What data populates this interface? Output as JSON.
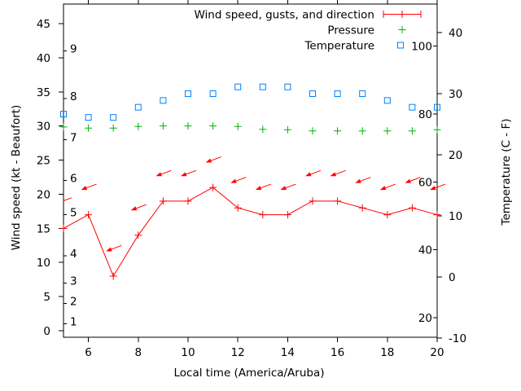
{
  "chart_data": {
    "type": "line",
    "x_axis": {
      "label": "Local time (America/Aruba)",
      "min": 5,
      "max": 20,
      "ticks": [
        6,
        8,
        10,
        12,
        14,
        16,
        18,
        20
      ]
    },
    "wind_axis": {
      "label": "Wind speed (kt - Beaufort)",
      "ticks": [
        0,
        5,
        10,
        15,
        20,
        25,
        30,
        35,
        40,
        45
      ],
      "range_min": -0.96,
      "range_max": 47.87,
      "beaufort_labels": [
        {
          "text": "1",
          "kt": 1
        },
        {
          "text": "2",
          "kt": 4
        },
        {
          "text": "3",
          "kt": 7
        },
        {
          "text": "4",
          "kt": 11
        },
        {
          "text": "5",
          "kt": 17
        },
        {
          "text": "6",
          "kt": 22
        },
        {
          "text": "7",
          "kt": 28
        },
        {
          "text": "8",
          "kt": 34
        },
        {
          "text": "9",
          "kt": 41
        }
      ]
    },
    "temp_axis": {
      "label": "Temperature (C - F)",
      "ticks_c": [
        -10,
        0,
        10,
        20,
        30,
        40
      ],
      "range_min": -9.87,
      "range_max": 44.67,
      "fahrenheit_labels": [
        20,
        40,
        60,
        80,
        100
      ]
    },
    "hours": [
      5,
      6,
      7,
      8,
      9,
      10,
      11,
      12,
      13,
      14,
      15,
      16,
      17,
      18,
      19,
      20
    ],
    "series": [
      {
        "name": "Wind speed, gusts, and direction",
        "style": "line-with-plus-markers-and-direction-arrows",
        "color": "#ff0000",
        "wind_kt": [
          15,
          17,
          8,
          14,
          19,
          19,
          21,
          18,
          17,
          17,
          19,
          19,
          18,
          17,
          18,
          17
        ],
        "gust_kt": [
          19,
          21,
          12,
          18,
          23,
          23,
          25,
          22,
          21,
          21,
          23,
          23,
          22,
          21,
          22,
          21
        ]
      },
      {
        "name": "Pressure",
        "style": "plus-markers",
        "color": "#00b400",
        "values_on_wind_axis": [
          29.85,
          29.7,
          29.7,
          29.93,
          30.0,
          30.0,
          30.0,
          29.93,
          29.52,
          29.45,
          29.28,
          29.28,
          29.28,
          29.28,
          29.28,
          29.45
        ]
      },
      {
        "name": "Temperature",
        "style": "open-square-markers",
        "color": "#0080ff",
        "values_f": [
          80,
          79,
          79,
          82,
          84,
          86,
          86,
          88,
          88,
          88,
          86,
          86,
          86,
          84,
          82,
          82
        ]
      }
    ],
    "legend": {
      "position": "top-right-inside",
      "entries": [
        {
          "label": "Wind speed, gusts, and direction",
          "marker": "red-errorbar"
        },
        {
          "label": "Pressure",
          "marker": "green-plus"
        },
        {
          "label": "Temperature",
          "marker": "blue-open-square"
        }
      ]
    }
  },
  "colors": {
    "wind": "#ff0000",
    "pressure": "#00b400",
    "temperature": "#0080ff",
    "axis": "#000000",
    "background": "#ffffff"
  }
}
